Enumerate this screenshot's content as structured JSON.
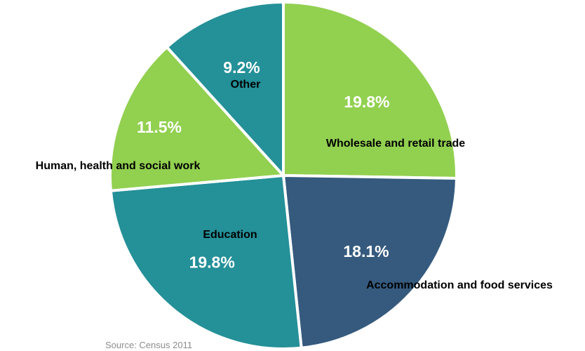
{
  "chart_data": {
    "type": "pie",
    "slices": [
      {
        "label": "Wholesale and retail trade",
        "percent_label": "19.8%",
        "value": 19.8,
        "color": "#92d050"
      },
      {
        "label": "Accommodation and food services",
        "percent_label": "18.1%",
        "value": 18.1,
        "color": "#355a7e"
      },
      {
        "label": "Education",
        "percent_label": "19.8%",
        "value": 19.8,
        "color": "#249098"
      },
      {
        "label": "Human, health and social work",
        "percent_label": "11.5%",
        "value": 11.5,
        "color": "#92d050"
      },
      {
        "label": "Other",
        "percent_label": "9.2%",
        "value": 9.2,
        "color": "#249098"
      }
    ],
    "start_angle_deg": 0,
    "direction": "clockwise",
    "legend": "none",
    "source": "Source: Census 2011"
  }
}
